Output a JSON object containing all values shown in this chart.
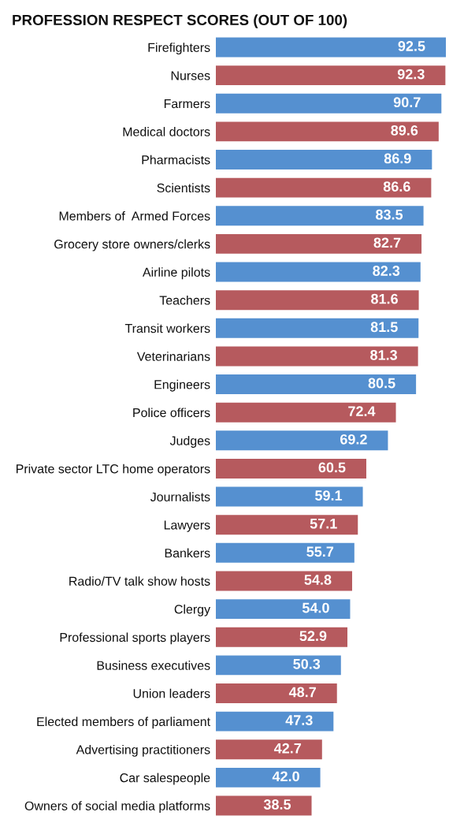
{
  "chart_data": {
    "type": "bar",
    "orientation": "horizontal",
    "title": "PROFESSION RESPECT SCORES (OUT OF 100)",
    "categories": [
      "Firefighters",
      "Nurses",
      "Farmers",
      "Medical doctors",
      "Pharmacists",
      "Scientists",
      "Members of  Armed Forces",
      "Grocery store owners/clerks",
      "Airline pilots",
      "Teachers",
      "Transit workers",
      "Veterinarians",
      "Engineers",
      "Police officers",
      "Judges",
      "Private sector LTC home operators",
      "Journalists",
      "Lawyers",
      "Bankers",
      "Radio/TV talk show hosts",
      "Clergy",
      "Professional sports players",
      "Business executives",
      "Union leaders",
      "Elected members of parliament",
      "Advertising practitioners",
      "Car salespeople",
      "Owners of social media platforms"
    ],
    "values": [
      92.5,
      92.3,
      90.7,
      89.6,
      86.9,
      86.6,
      83.5,
      82.7,
      82.3,
      81.6,
      81.5,
      81.3,
      80.5,
      72.4,
      69.2,
      60.5,
      59.1,
      57.1,
      55.7,
      54.8,
      54.0,
      52.9,
      50.3,
      48.7,
      47.3,
      42.7,
      42.0,
      38.5
    ],
    "value_labels": [
      "92.5",
      "92.3",
      "90.7",
      "89.6",
      "86.9",
      "86.6",
      "83.5",
      "82.7",
      "82.3",
      "81.6",
      "81.5",
      "81.3",
      "80.5",
      "72.4",
      "69.2",
      "60.5",
      "59.1",
      "57.1",
      "55.7",
      "54.8",
      "54.0",
      "52.9",
      "50.3",
      "48.7",
      "47.3",
      "42.7",
      "42.0",
      "38.5"
    ],
    "colors": [
      "#5590d0",
      "#b65a5e",
      "#5590d0",
      "#b65a5e",
      "#5590d0",
      "#b65a5e",
      "#5590d0",
      "#b65a5e",
      "#5590d0",
      "#b65a5e",
      "#5590d0",
      "#b65a5e",
      "#5590d0",
      "#b65a5e",
      "#5590d0",
      "#b65a5e",
      "#5590d0",
      "#b65a5e",
      "#5590d0",
      "#b65a5e",
      "#5590d0",
      "#b65a5e",
      "#5590d0",
      "#b65a5e",
      "#5590d0",
      "#b65a5e",
      "#5590d0",
      "#b65a5e"
    ],
    "tick_labels": "y"
  }
}
